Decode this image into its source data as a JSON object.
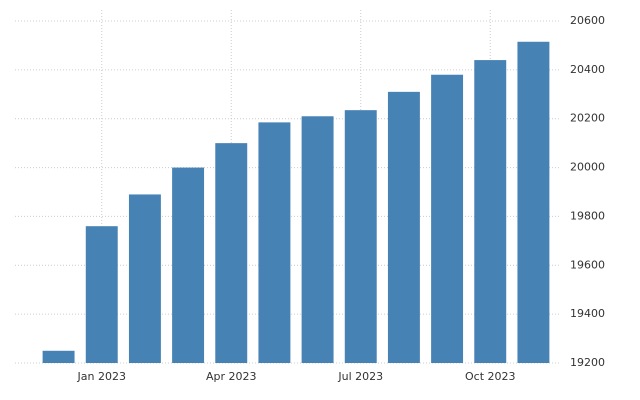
{
  "chart_data": {
    "type": "bar",
    "categories": [
      null,
      "Jan 2023",
      null,
      null,
      "Apr 2023",
      null,
      null,
      "Jul 2023",
      null,
      null,
      "Oct 2023",
      null
    ],
    "values": [
      19250,
      19760,
      19890,
      20000,
      20100,
      20185,
      20210,
      20235,
      20310,
      20380,
      20440,
      20515
    ],
    "color": "#4682b4",
    "ylim": [
      19200,
      20600
    ],
    "yticks": [
      19200,
      19400,
      19600,
      19800,
      20000,
      20200,
      20400,
      20600
    ],
    "grid": true,
    "y_axis_side": "right"
  }
}
